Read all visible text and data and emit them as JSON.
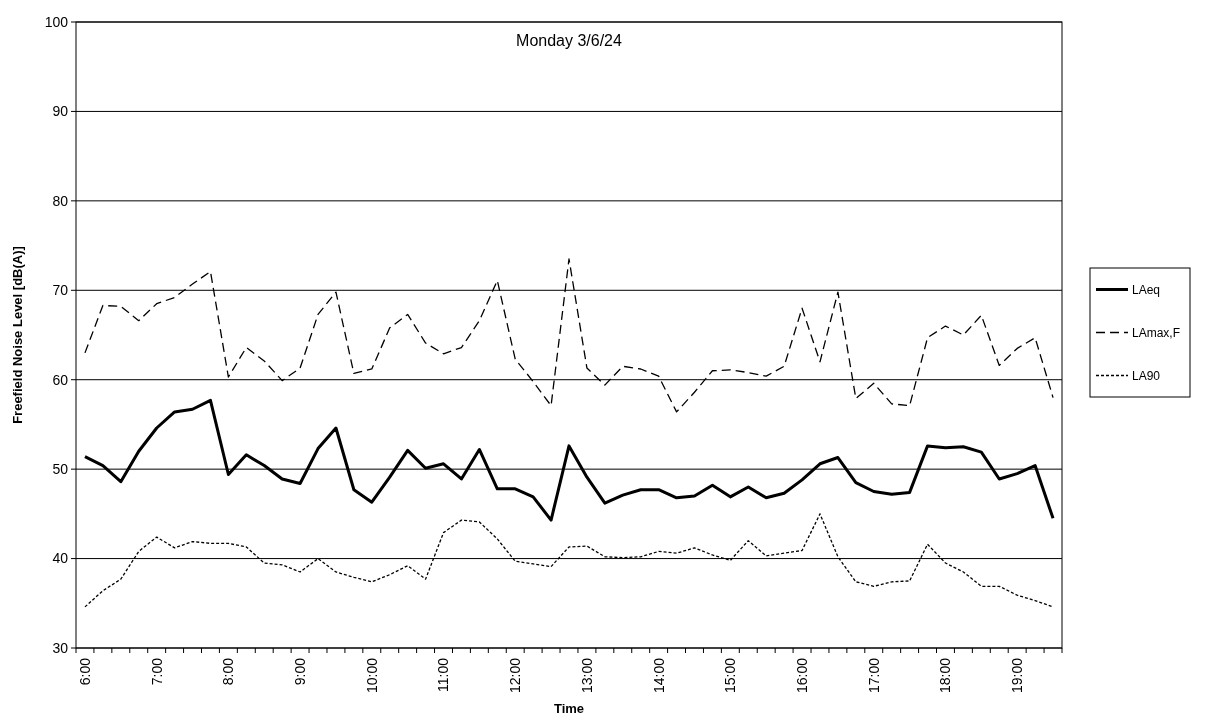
{
  "chart_data": {
    "type": "line",
    "title": "Monday 3/6/24",
    "xlabel": "Time",
    "ylabel": "Freefield Noise Level [dB(A)]",
    "categories": [
      "6:00",
      null,
      null,
      null,
      "7:00",
      null,
      null,
      null,
      "8:00",
      null,
      null,
      null,
      "9:00",
      null,
      null,
      null,
      "10:00",
      null,
      null,
      null,
      "11:00",
      null,
      null,
      null,
      "12:00",
      null,
      null,
      null,
      "13:00",
      null,
      null,
      null,
      "14:00",
      null,
      null,
      null,
      "15:00",
      null,
      null,
      null,
      "16:00",
      null,
      null,
      null,
      "17:00",
      null,
      null,
      null,
      "18:00",
      null,
      null,
      null,
      "19:00",
      null,
      null
    ],
    "series": [
      {
        "name": "LAeq",
        "color": "#000000",
        "line_style": "solid",
        "values": [
          51.4,
          50.4,
          48.6,
          52.0,
          54.6,
          56.4,
          56.7,
          57.7,
          49.4,
          51.6,
          50.4,
          48.9,
          48.4,
          52.3,
          54.6,
          47.7,
          46.3,
          49.1,
          52.1,
          50.1,
          50.6,
          48.9,
          52.2,
          47.8,
          47.8,
          46.9,
          44.3,
          52.6,
          49.1,
          46.2,
          47.1,
          47.7,
          47.7,
          46.8,
          47.0,
          48.2,
          46.9,
          48.0,
          46.8,
          47.3,
          48.8,
          50.6,
          51.3,
          48.5,
          47.5,
          47.2,
          47.4,
          52.6,
          52.4,
          52.5,
          51.9,
          48.9,
          49.5,
          50.4,
          44.5
        ]
      },
      {
        "name": "LAmax,F",
        "color": "#000000",
        "line_style": "dashed",
        "values": [
          63.0,
          68.3,
          68.2,
          66.6,
          68.5,
          69.2,
          70.7,
          72.1,
          60.3,
          63.6,
          62.1,
          59.9,
          61.3,
          67.3,
          69.8,
          60.7,
          61.2,
          65.8,
          67.3,
          64.1,
          62.9,
          63.6,
          66.6,
          71.1,
          62.3,
          59.8,
          57.1,
          73.5,
          61.3,
          59.4,
          61.5,
          61.2,
          60.4,
          56.4,
          58.6,
          61.0,
          61.1,
          60.8,
          60.4,
          61.5,
          68.0,
          62.0,
          69.8,
          57.9,
          59.6,
          57.3,
          57.1,
          64.7,
          66.0,
          65.0,
          67.2,
          61.6,
          63.5,
          64.7,
          58.0
        ]
      },
      {
        "name": "LA90",
        "color": "#000000",
        "line_style": "dotted",
        "values": [
          34.6,
          36.4,
          37.7,
          40.8,
          42.4,
          41.2,
          41.9,
          41.7,
          41.7,
          41.3,
          39.5,
          39.3,
          38.5,
          40.0,
          38.5,
          37.9,
          37.4,
          38.2,
          39.2,
          37.7,
          42.9,
          44.3,
          44.1,
          42.2,
          39.7,
          39.4,
          39.1,
          41.3,
          41.4,
          40.2,
          40.1,
          40.2,
          40.8,
          40.6,
          41.2,
          40.4,
          39.8,
          42.0,
          40.3,
          40.6,
          40.9,
          45.0,
          40.2,
          37.4,
          36.9,
          37.4,
          37.5,
          41.6,
          39.5,
          38.5,
          36.9,
          36.9,
          35.9,
          35.3,
          34.6
        ]
      }
    ],
    "ylim": [
      30,
      100
    ],
    "yticks": [
      30,
      40,
      50,
      60,
      70,
      80,
      90,
      100
    ],
    "grid": "y",
    "legend": "right",
    "marker": "none"
  }
}
